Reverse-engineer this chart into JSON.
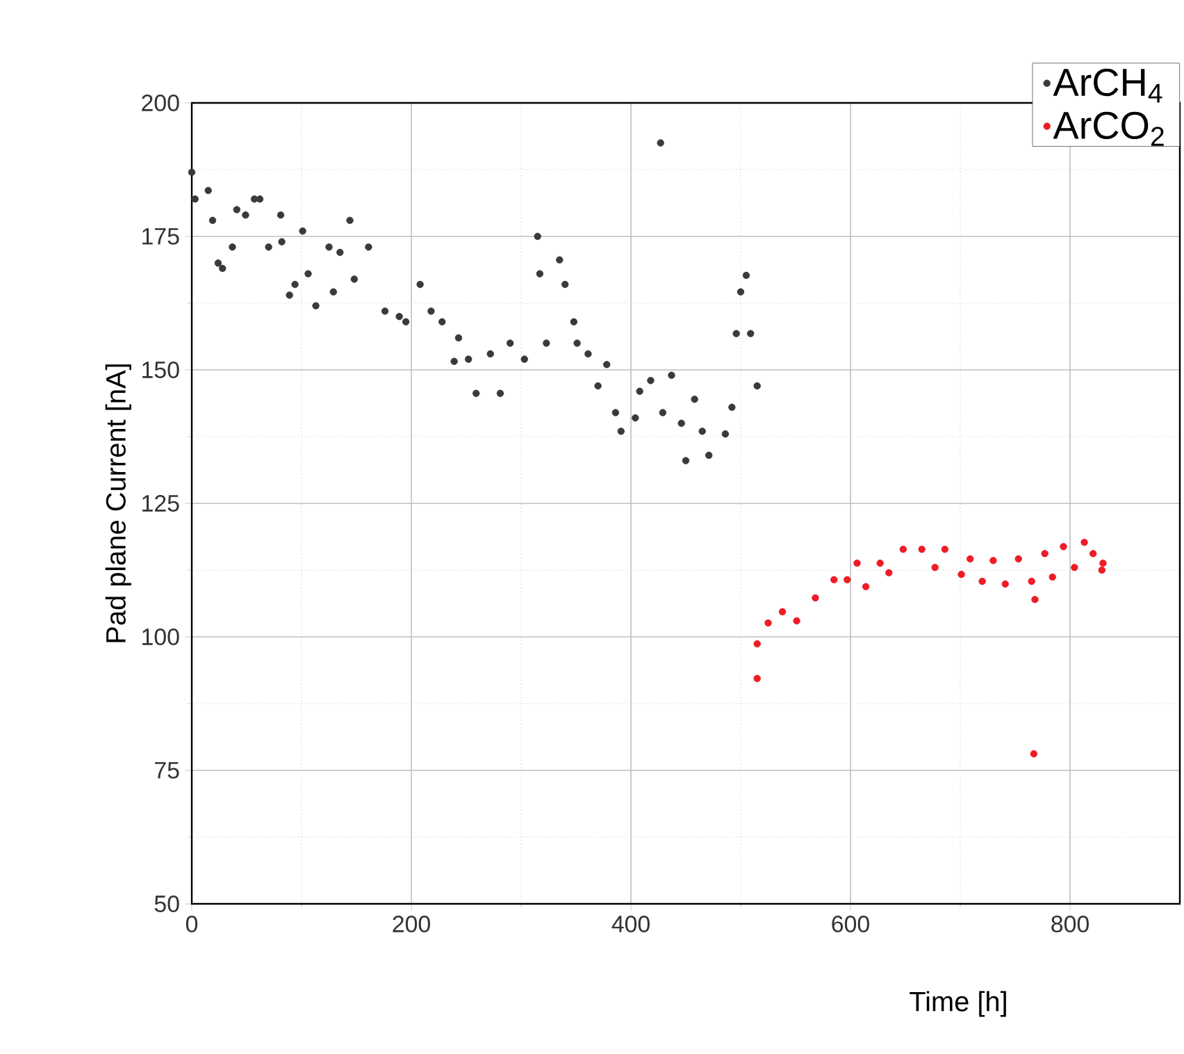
{
  "chart_data": {
    "type": "scatter",
    "xlabel": "Time [h]",
    "ylabel": "Pad plane Current [nA]",
    "xlim": [
      0,
      900
    ],
    "ylim": [
      50,
      200
    ],
    "xticks": [
      0,
      200,
      400,
      600,
      800
    ],
    "yticks": [
      50,
      75,
      100,
      125,
      150,
      175,
      200
    ],
    "grid": true,
    "legend": "top right",
    "series": [
      {
        "name": "ArCH$_{4}$",
        "color": "#3a3a3a",
        "x": [
          0,
          3,
          15,
          19,
          24,
          28,
          37,
          41,
          49,
          57,
          62,
          70,
          81,
          82,
          89,
          94,
          101,
          106,
          113,
          125,
          129,
          135,
          144,
          148,
          161,
          176,
          189,
          195,
          208,
          218,
          228,
          239,
          243,
          252,
          259,
          272,
          281,
          290,
          303,
          315,
          317,
          323,
          335,
          340,
          348,
          351,
          361,
          370,
          378,
          386,
          391,
          404,
          408,
          418,
          427,
          429,
          437,
          446,
          450,
          458,
          465,
          471,
          486,
          492,
          496,
          500,
          505,
          509,
          515
        ],
        "values": [
          187,
          182,
          183.6,
          178,
          170,
          169,
          173,
          180,
          179,
          182,
          182,
          173,
          179,
          174,
          164,
          166,
          176,
          168,
          162,
          173,
          164.6,
          172,
          178,
          167,
          173,
          161,
          160,
          159,
          166,
          161,
          159,
          151.6,
          156,
          152,
          145.6,
          153,
          145.6,
          155,
          152,
          175,
          168,
          155,
          170.6,
          166,
          159,
          155,
          153,
          147,
          151,
          142,
          138.5,
          141,
          146,
          148,
          192.5,
          142,
          149,
          140,
          133,
          144.5,
          138.5,
          134,
          138,
          143,
          156.8,
          164.6,
          167.7,
          156.8,
          147
        ]
      },
      {
        "name": "ArCO$_{2}$",
        "color": "#ee1c25",
        "x": [
          515,
          515,
          525,
          538,
          551,
          568,
          585,
          597,
          606,
          614,
          627,
          635,
          648,
          665,
          677,
          686,
          701,
          709,
          720,
          730,
          741,
          753,
          765,
          768,
          767,
          777,
          784,
          794,
          804,
          813,
          821,
          829,
          830
        ],
        "values": [
          98.7,
          92.2,
          102.6,
          104.7,
          103,
          107.3,
          110.7,
          110.7,
          113.8,
          109.4,
          113.8,
          112,
          116.4,
          116.4,
          113,
          116.4,
          111.7,
          114.6,
          110.4,
          114.3,
          109.9,
          114.6,
          110.4,
          107,
          78.1,
          115.6,
          111.2,
          116.9,
          113,
          117.7,
          115.6,
          112.5,
          113.8
        ]
      }
    ]
  }
}
